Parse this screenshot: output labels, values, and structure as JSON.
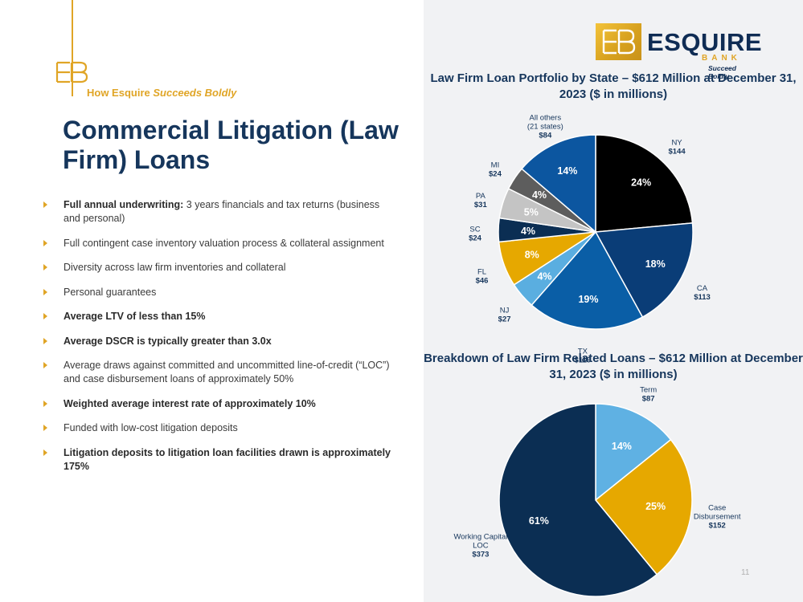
{
  "header": {
    "tagline_prefix": "How Esquire ",
    "tagline_emphasis": "Succeeds Boldly",
    "title": "Commercial Litigation (Law Firm) Loans"
  },
  "logo": {
    "word": "ESQUIRE",
    "sub": "BANK",
    "tagline": "Succeed Boldly"
  },
  "bullets": [
    {
      "bold": "Full annual underwriting:",
      "text": " 3 years financials and tax returns (business and personal)"
    },
    {
      "bold": "",
      "text": "Full contingent case inventory valuation process & collateral assignment"
    },
    {
      "bold": "",
      "text": "Diversity across law firm inventories and collateral"
    },
    {
      "bold": "",
      "text": "Personal guarantees"
    },
    {
      "bold": "Average LTV of less than 15%",
      "text": ""
    },
    {
      "bold": "Average DSCR is typically greater than 3.0x",
      "text": ""
    },
    {
      "bold": "",
      "text": "Average draws against committed and uncommitted line-of-credit (“LOC”) and case disbursement loans of approximately 50%"
    },
    {
      "bold": "Weighted average interest rate of approximately 10%",
      "text": ""
    },
    {
      "bold": "",
      "text": "Funded with low-cost litigation deposits"
    },
    {
      "bold": "Litigation deposits to litigation loan facilities drawn is approximately 175%",
      "text": ""
    }
  ],
  "page_number": "11",
  "colors": {
    "navy": "#16365c",
    "gold": "#e0a526"
  },
  "chart_data": [
    {
      "type": "pie",
      "title": "Law Firm Loan Portfolio by State – $612 Million at December 31, 2023 ($ in millions)",
      "slices": [
        {
          "label": "NY",
          "value_label": "$144",
          "value": 144,
          "pct": "24%",
          "color": "#000000"
        },
        {
          "label": "CA",
          "value_label": "$113",
          "value": 113,
          "pct": "18%",
          "color": "#0a3d77"
        },
        {
          "label": "TX",
          "value_label": "$119",
          "value": 119,
          "pct": "19%",
          "color": "#0a5ea6"
        },
        {
          "label": "NJ",
          "value_label": "$27",
          "value": 27,
          "pct": "4%",
          "color": "#5aaee0"
        },
        {
          "label": "FL",
          "value_label": "$46",
          "value": 46,
          "pct": "8%",
          "color": "#e6a800"
        },
        {
          "label": "SC",
          "value_label": "$24",
          "value": 24,
          "pct": "4%",
          "color": "#0b2e53"
        },
        {
          "label": "PA",
          "value_label": "$31",
          "value": 31,
          "pct": "5%",
          "color": "#c4c4c4"
        },
        {
          "label": "MI",
          "value_label": "$24",
          "value": 24,
          "pct": "4%",
          "color": "#5d5d5d"
        },
        {
          "label": "All others (21 states)",
          "value_label": "$84",
          "value": 84,
          "pct": "14%",
          "color": "#0c56a0"
        }
      ]
    },
    {
      "type": "pie",
      "title": "Breakdown of Law Firm Related Loans – $612 Million at December 31, 2023 ($ in millions)",
      "slices": [
        {
          "label": "Term",
          "value_label": "$87",
          "value": 87,
          "pct": "14%",
          "color": "#5fb1e3"
        },
        {
          "label": "Case Disbursement",
          "value_label": "$152",
          "value": 152,
          "pct": "25%",
          "color": "#e6a800"
        },
        {
          "label": "Working Capital LOC",
          "value_label": "$373",
          "value": 373,
          "pct": "61%",
          "color": "#0b2e53"
        }
      ]
    }
  ]
}
